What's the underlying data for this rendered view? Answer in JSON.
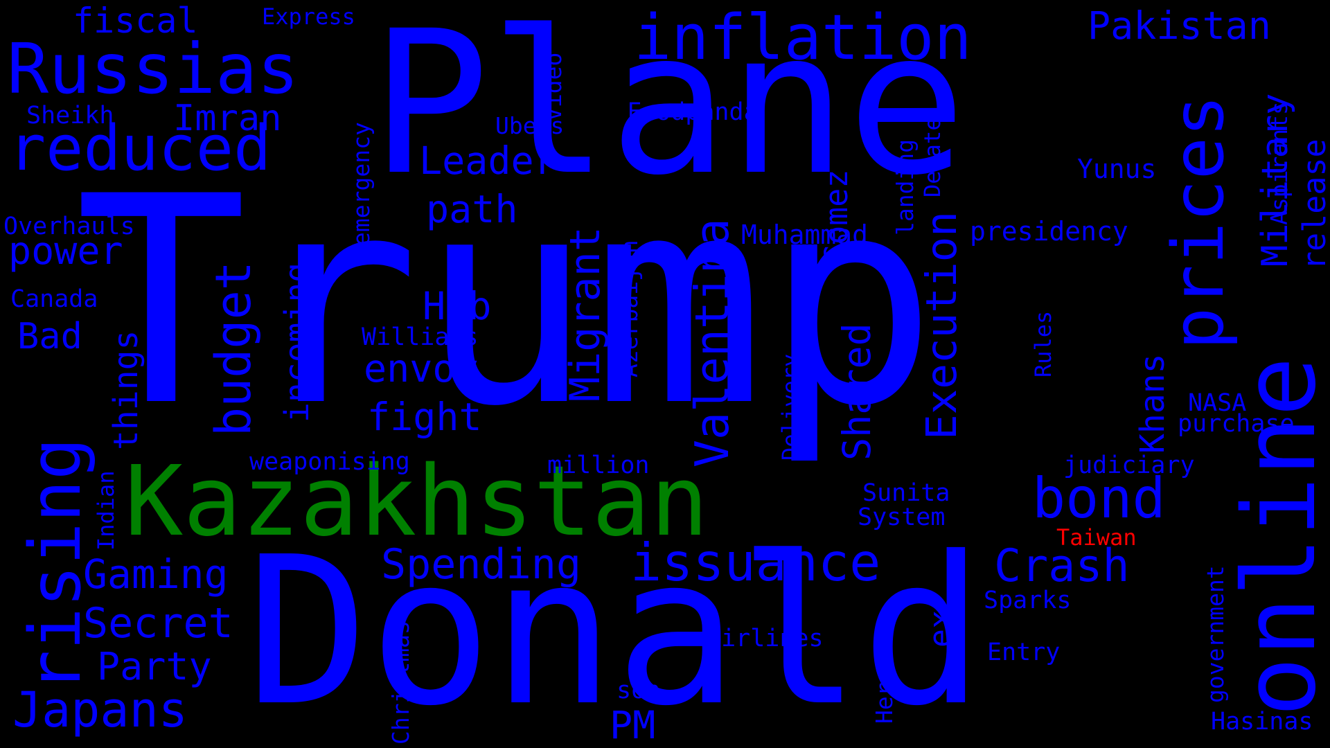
{
  "colors": {
    "background": "#000000",
    "blue": "#0000ff",
    "green": "#008000",
    "red": "#ff0000"
  },
  "words": [
    {
      "text": "Trump",
      "color": "blue",
      "vertical": false
    },
    {
      "text": "Plane",
      "color": "blue",
      "vertical": false
    },
    {
      "text": "Donald",
      "color": "blue",
      "vertical": false
    },
    {
      "text": "online",
      "color": "blue",
      "vertical": true
    },
    {
      "text": "Kazakhstan",
      "color": "green",
      "vertical": false
    },
    {
      "text": "rising",
      "color": "blue",
      "vertical": true
    },
    {
      "text": "inflation",
      "color": "blue",
      "vertical": false
    },
    {
      "text": "prices",
      "color": "blue",
      "vertical": true
    },
    {
      "text": "reduced",
      "color": "blue",
      "vertical": false
    },
    {
      "text": "Russias",
      "color": "blue",
      "vertical": false
    },
    {
      "text": "issuance",
      "color": "blue",
      "vertical": false
    },
    {
      "text": "bond",
      "color": "blue",
      "vertical": false
    },
    {
      "text": "budget",
      "color": "blue",
      "vertical": true
    },
    {
      "text": "Valentina",
      "color": "blue",
      "vertical": true
    },
    {
      "text": "Execution",
      "color": "blue",
      "vertical": true
    },
    {
      "text": "Migrant",
      "color": "blue",
      "vertical": true
    },
    {
      "text": "Japans",
      "color": "blue",
      "vertical": false
    },
    {
      "text": "Military",
      "color": "blue",
      "vertical": true
    },
    {
      "text": "Shared",
      "color": "blue",
      "vertical": true
    },
    {
      "text": "Crash",
      "color": "blue",
      "vertical": false
    },
    {
      "text": "Spending",
      "color": "blue",
      "vertical": false
    },
    {
      "text": "incoming",
      "color": "blue",
      "vertical": true
    },
    {
      "text": "Pakistan",
      "color": "blue",
      "vertical": false
    },
    {
      "text": "release",
      "color": "blue",
      "vertical": true
    },
    {
      "text": "Secret",
      "color": "blue",
      "vertical": false
    },
    {
      "text": "Gaming",
      "color": "blue",
      "vertical": false
    },
    {
      "text": "Leader",
      "color": "blue",
      "vertical": false
    },
    {
      "text": "envoy",
      "color": "blue",
      "vertical": false
    },
    {
      "text": "fight",
      "color": "blue",
      "vertical": false
    },
    {
      "text": "things",
      "color": "blue",
      "vertical": true
    },
    {
      "text": "Party",
      "color": "blue",
      "vertical": false
    },
    {
      "text": "power",
      "color": "blue",
      "vertical": false
    },
    {
      "text": "path",
      "color": "blue",
      "vertical": false
    },
    {
      "text": "Imran",
      "color": "blue",
      "vertical": false
    },
    {
      "text": "Khans",
      "color": "blue",
      "vertical": true
    },
    {
      "text": "PM",
      "color": "blue",
      "vertical": false
    },
    {
      "text": "fiscal",
      "color": "blue",
      "vertical": false
    },
    {
      "text": "Gomez",
      "color": "blue",
      "vertical": true
    },
    {
      "text": "Hub",
      "color": "blue",
      "vertical": false
    },
    {
      "text": "Bad",
      "color": "blue",
      "vertical": false
    },
    {
      "text": "ex",
      "color": "blue",
      "vertical": true
    },
    {
      "text": "Muhammad",
      "color": "blue",
      "vertical": false
    },
    {
      "text": "presidency",
      "color": "blue",
      "vertical": false
    },
    {
      "text": "Yunus",
      "color": "blue",
      "vertical": false
    },
    {
      "text": "Foodpanda",
      "color": "blue",
      "vertical": false
    },
    {
      "text": "Debate",
      "color": "blue",
      "vertical": true
    },
    {
      "text": "landing",
      "color": "blue",
      "vertical": true
    },
    {
      "text": "emergency",
      "color": "blue",
      "vertical": true
    },
    {
      "text": "Video",
      "color": "blue",
      "vertical": true
    },
    {
      "text": "Ubers",
      "color": "blue",
      "vertical": false
    },
    {
      "text": "Aspirants",
      "color": "blue",
      "vertical": true
    },
    {
      "text": "Azerbaijan",
      "color": "blue",
      "vertical": true
    },
    {
      "text": "Delivery",
      "color": "blue",
      "vertical": true
    },
    {
      "text": "Rules",
      "color": "blue",
      "vertical": true
    },
    {
      "text": "NASA",
      "color": "blue",
      "vertical": false
    },
    {
      "text": "purchase",
      "color": "blue",
      "vertical": false
    },
    {
      "text": "judiciary",
      "color": "blue",
      "vertical": false
    },
    {
      "text": "Sunita",
      "color": "blue",
      "vertical": false
    },
    {
      "text": "System",
      "color": "blue",
      "vertical": false
    },
    {
      "text": "Taiwan",
      "color": "red",
      "vertical": false
    },
    {
      "text": "Sparks",
      "color": "blue",
      "vertical": false
    },
    {
      "text": "Entry",
      "color": "blue",
      "vertical": false
    },
    {
      "text": "Airlines",
      "color": "blue",
      "vertical": false
    },
    {
      "text": "son",
      "color": "blue",
      "vertical": false
    },
    {
      "text": "million",
      "color": "blue",
      "vertical": false
    },
    {
      "text": "weaponising",
      "color": "blue",
      "vertical": false
    },
    {
      "text": "Williams",
      "color": "blue",
      "vertical": false
    },
    {
      "text": "Canada",
      "color": "blue",
      "vertical": false
    },
    {
      "text": "Overhauls",
      "color": "blue",
      "vertical": false
    },
    {
      "text": "Sheikh",
      "color": "blue",
      "vertical": false
    },
    {
      "text": "Express",
      "color": "blue",
      "vertical": false
    },
    {
      "text": "Indian",
      "color": "blue",
      "vertical": true
    },
    {
      "text": "Christmas",
      "color": "blue",
      "vertical": true
    },
    {
      "text": "Heros",
      "color": "blue",
      "vertical": true
    },
    {
      "text": "government",
      "color": "blue",
      "vertical": true
    },
    {
      "text": "Hasinas",
      "color": "blue",
      "vertical": false
    }
  ]
}
